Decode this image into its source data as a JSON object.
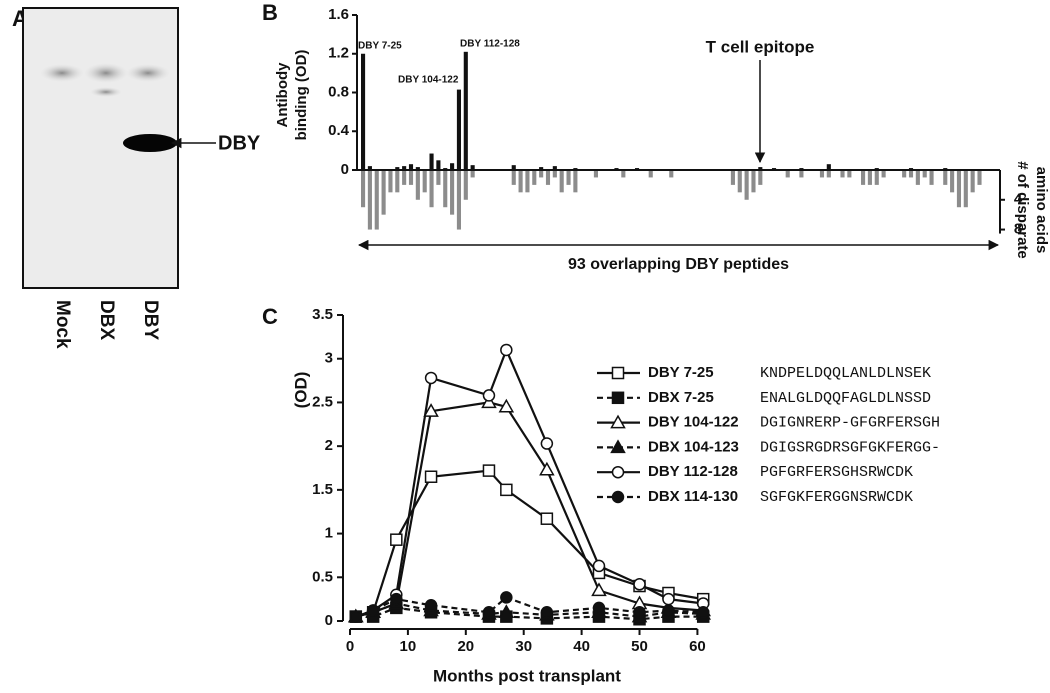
{
  "blot": {
    "panel": "A",
    "lanes": [
      "Mock",
      "DBX",
      "DBY"
    ],
    "band_label": "DBY"
  },
  "chart_data": [
    {
      "type": "bar",
      "panel": "B",
      "ylabel": [
        "Antibody",
        "binding (OD)"
      ],
      "y2label": [
        "# of disparate",
        "amino acids"
      ],
      "ylim": [
        0,
        1.6
      ],
      "yticks": [
        0,
        0.4,
        0.8,
        1.2,
        1.6
      ],
      "y2lim": [
        0,
        9
      ],
      "y2ticks": [
        4,
        8
      ],
      "annotations": [
        "DBY 7-25",
        "DBY 104-122",
        "DBY 112-128"
      ],
      "epitope_label": "T cell epitope",
      "xlabel": "93 overlapping DBY peptides",
      "series": [
        {
          "color": "#111111",
          "values": [
            1.2,
            0.04,
            0,
            0,
            0,
            0.03,
            0.04,
            0.06,
            0.03,
            0,
            0.17,
            0.1,
            0.02,
            0.07,
            0.83,
            1.22,
            0.05,
            0,
            0,
            0,
            0,
            0,
            0.05,
            0,
            0,
            0,
            0.03,
            0,
            0.04,
            0,
            0,
            0.02,
            0,
            0,
            0,
            0,
            0,
            0.02,
            0,
            0,
            0.02,
            0,
            0,
            0,
            0,
            0,
            0,
            0,
            0,
            0,
            0,
            0,
            0,
            0,
            0,
            0,
            0,
            0,
            0.03,
            0,
            0.02,
            0,
            0,
            0,
            0.02,
            0,
            0,
            0,
            0.06,
            0,
            0,
            0,
            0,
            0,
            0,
            0.02,
            0,
            0,
            0,
            0,
            0.02,
            0,
            0,
            0,
            0,
            0.02,
            0,
            0,
            0,
            0,
            0,
            0,
            0
          ]
        },
        {
          "axis": "y2",
          "color": "#8c8c8c",
          "values": [
            5,
            8,
            8,
            6,
            3,
            3,
            2,
            2,
            4,
            3,
            5,
            2,
            5,
            6,
            8,
            4,
            1,
            0,
            0,
            0,
            0,
            0,
            2,
            3,
            3,
            2,
            1,
            2,
            1,
            3,
            2,
            3,
            0,
            0,
            1,
            0,
            0,
            0,
            1,
            0,
            0,
            0,
            1,
            0,
            0,
            1,
            0,
            0,
            0,
            0,
            0,
            0,
            0,
            0,
            2,
            3,
            4,
            3,
            2,
            0,
            0,
            0,
            1,
            0,
            1,
            0,
            0,
            1,
            1,
            0,
            1,
            1,
            0,
            2,
            2,
            2,
            1,
            0,
            0,
            1,
            1,
            2,
            1,
            2,
            0,
            2,
            3,
            5,
            5,
            3,
            2,
            0,
            0
          ]
        }
      ]
    },
    {
      "type": "line",
      "panel": "C",
      "xlabel": "Months post transplant",
      "ylabel": "(OD)",
      "xlim": [
        0,
        62
      ],
      "xticks": [
        0,
        10,
        20,
        30,
        40,
        50,
        60
      ],
      "ylim": [
        0,
        3.5
      ],
      "yticks": [
        0,
        0.5,
        1,
        1.5,
        2,
        2.5,
        3,
        3.5
      ],
      "x": [
        1,
        4,
        8,
        14,
        24,
        27,
        34,
        43,
        50,
        55,
        61
      ],
      "series": [
        {
          "name": "DBY 7-25",
          "sequence": "KNDPELDQQLANLDLNSEK",
          "color": "#111111",
          "marker": "square",
          "filled": false,
          "dashed": false,
          "values": [
            0.05,
            0.1,
            0.93,
            1.65,
            1.72,
            1.5,
            1.17,
            0.55,
            0.4,
            0.32,
            0.25
          ]
        },
        {
          "name": "DBX 7-25",
          "sequence": "ENALGLDQQFAGLDLNSSD",
          "color": "#111111",
          "marker": "square",
          "filled": true,
          "dashed": true,
          "values": [
            0.05,
            0.05,
            0.15,
            0.1,
            0.05,
            0.05,
            0.03,
            0.05,
            0.02,
            0.05,
            0.05
          ]
        },
        {
          "name": "DBY 104-122",
          "sequence": "DGIGNRERP-GFGRFERSGH",
          "color": "#111111",
          "marker": "triangle",
          "filled": false,
          "dashed": false,
          "values": [
            0.05,
            0.1,
            0.2,
            2.4,
            2.5,
            2.45,
            1.73,
            0.35,
            0.2,
            0.15,
            0.12
          ]
        },
        {
          "name": "DBX 104-123",
          "sequence": "DGIGSRGDRSGFGKFERGG-",
          "color": "#111111",
          "marker": "triangle",
          "filled": true,
          "dashed": true,
          "values": [
            0.05,
            0.1,
            0.2,
            0.12,
            0.08,
            0.1,
            0.07,
            0.1,
            0.05,
            0.1,
            0.08
          ]
        },
        {
          "name": "DBY 112-128",
          "sequence": "PGFGRFERSGHSRWCDK",
          "color": "#111111",
          "marker": "circle",
          "filled": false,
          "dashed": false,
          "values": [
            0.05,
            0.12,
            0.3,
            2.78,
            2.58,
            3.1,
            2.03,
            0.63,
            0.42,
            0.25,
            0.2
          ]
        },
        {
          "name": "DBX 114-130",
          "sequence": "SGFGKFERGGNSRWCDK",
          "color": "#111111",
          "marker": "circle",
          "filled": true,
          "dashed": true,
          "values": [
            0.05,
            0.12,
            0.25,
            0.18,
            0.1,
            0.27,
            0.1,
            0.15,
            0.1,
            0.12,
            0.1
          ]
        }
      ]
    }
  ]
}
